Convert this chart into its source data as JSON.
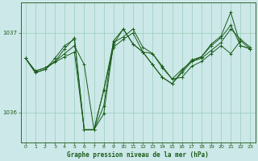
{
  "background_color": "#cce8e8",
  "plot_bg_color": "#cce8e8",
  "grid_color": "#99ccbb",
  "line_color": "#1a5c1a",
  "marker_color": "#1a5c1a",
  "xlabel": "Graphe pression niveau de la mer (hPa)",
  "xlim": [
    -0.5,
    23.5
  ],
  "ylim": [
    1035.62,
    1037.38
  ],
  "yticks": [
    1036,
    1037
  ],
  "xticks": [
    0,
    1,
    2,
    3,
    4,
    5,
    6,
    7,
    8,
    9,
    10,
    11,
    12,
    13,
    14,
    15,
    16,
    17,
    18,
    19,
    20,
    21,
    22,
    23
  ],
  "series": [
    [
      1036.68,
      1036.52,
      1036.56,
      1036.63,
      1036.7,
      1036.76,
      1035.78,
      1035.78,
      1036.28,
      1036.88,
      1036.95,
      1037.05,
      1036.82,
      1036.74,
      1036.58,
      1036.42,
      1036.44,
      1036.58,
      1036.64,
      1036.74,
      1036.84,
      1036.74,
      1036.9,
      1036.8
    ],
    [
      1036.68,
      1036.52,
      1036.56,
      1036.64,
      1036.74,
      1036.84,
      1036.6,
      1035.78,
      1036.28,
      1036.82,
      1036.92,
      1037.0,
      1036.76,
      1036.74,
      1036.56,
      1036.42,
      1036.54,
      1036.64,
      1036.68,
      1036.78,
      1036.88,
      1037.05,
      1036.92,
      1036.82
    ],
    [
      1036.68,
      1036.5,
      1036.54,
      1036.64,
      1036.8,
      1036.94,
      1035.78,
      1035.78,
      1035.98,
      1036.86,
      1037.05,
      1036.86,
      1036.76,
      1036.6,
      1036.44,
      1036.36,
      1036.5,
      1036.64,
      1036.7,
      1036.84,
      1036.94,
      1037.1,
      1036.84,
      1036.8
    ],
    [
      1036.68,
      1036.5,
      1036.54,
      1036.68,
      1036.84,
      1036.92,
      1035.78,
      1035.78,
      1036.08,
      1036.9,
      1037.05,
      1036.86,
      1036.76,
      1036.6,
      1036.44,
      1036.36,
      1036.52,
      1036.66,
      1036.7,
      1036.86,
      1036.96,
      1037.26,
      1036.84,
      1036.8
    ]
  ]
}
